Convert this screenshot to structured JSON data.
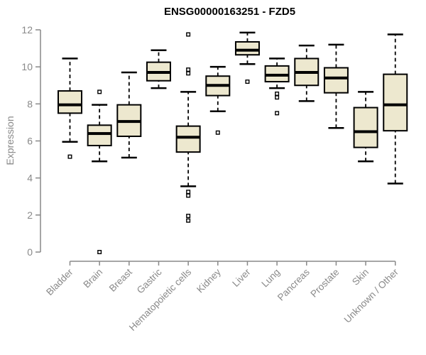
{
  "figure": {
    "title": "ENSG00000163251 - FZD5",
    "ylabel": "Expression"
  },
  "colors": {
    "background": "#ffffff",
    "box_fill": "#ede8cf",
    "box_border": "#000000",
    "median": "#000000",
    "whisker": "#000000",
    "outlier_stroke": "#000000",
    "outlier_fill": "#ffffff",
    "axis": "#898989",
    "tick_label": "#898989",
    "title_color": "#000000"
  },
  "chart_data": {
    "type": "boxplot",
    "title": "ENSG00000163251 - FZD5",
    "xlabel": "",
    "ylabel": "Expression",
    "ylim": [
      0,
      12
    ],
    "yticks": [
      0,
      2,
      4,
      6,
      8,
      10,
      12
    ],
    "grid": false,
    "legend": "none",
    "categories": [
      "Bladder",
      "Brain",
      "Breast",
      "Gastric",
      "Hematopoietic cells",
      "Kidney",
      "Liver",
      "Lung",
      "Pancreas",
      "Prostate",
      "Skin",
      "Unknown / Other"
    ],
    "boxes": [
      {
        "category": "Bladder",
        "whisker_low": 5.95,
        "q1": 7.5,
        "median": 7.95,
        "q3": 8.7,
        "whisker_high": 10.45,
        "outliers": [
          5.15
        ]
      },
      {
        "category": "Brain",
        "whisker_low": 4.9,
        "q1": 5.75,
        "median": 6.4,
        "q3": 6.85,
        "whisker_high": 7.95,
        "outliers": [
          8.65,
          0.0
        ]
      },
      {
        "category": "Breast",
        "whisker_low": 5.1,
        "q1": 6.25,
        "median": 7.05,
        "q3": 7.95,
        "whisker_high": 9.7,
        "outliers": []
      },
      {
        "category": "Gastric",
        "whisker_low": 8.85,
        "q1": 9.25,
        "median": 9.7,
        "q3": 10.25,
        "whisker_high": 10.9,
        "outliers": []
      },
      {
        "category": "Hematopoietic cells",
        "whisker_low": 3.55,
        "q1": 5.4,
        "median": 6.2,
        "q3": 6.8,
        "whisker_high": 8.65,
        "outliers": [
          11.75,
          9.85,
          9.65,
          3.25,
          3.05,
          1.95,
          1.7
        ]
      },
      {
        "category": "Kidney",
        "whisker_low": 7.6,
        "q1": 8.45,
        "median": 9.0,
        "q3": 9.5,
        "whisker_high": 10.0,
        "outliers": [
          6.45
        ]
      },
      {
        "category": "Liver",
        "whisker_low": 10.15,
        "q1": 10.65,
        "median": 10.9,
        "q3": 11.35,
        "whisker_high": 11.85,
        "outliers": [
          9.2
        ]
      },
      {
        "category": "Lung",
        "whisker_low": 8.85,
        "q1": 9.2,
        "median": 9.55,
        "q3": 10.05,
        "whisker_high": 10.45,
        "outliers": [
          8.55,
          8.35,
          7.5
        ]
      },
      {
        "category": "Pancreas",
        "whisker_low": 8.15,
        "q1": 9.0,
        "median": 9.7,
        "q3": 10.45,
        "whisker_high": 11.15,
        "outliers": []
      },
      {
        "category": "Prostate",
        "whisker_low": 6.7,
        "q1": 8.6,
        "median": 9.4,
        "q3": 9.95,
        "whisker_high": 11.2,
        "outliers": []
      },
      {
        "category": "Skin",
        "whisker_low": 4.9,
        "q1": 5.65,
        "median": 6.5,
        "q3": 7.8,
        "whisker_high": 8.65,
        "outliers": []
      },
      {
        "category": "Unknown / Other",
        "whisker_low": 3.7,
        "q1": 6.55,
        "median": 7.95,
        "q3": 9.6,
        "whisker_high": 11.75,
        "outliers": []
      }
    ]
  }
}
